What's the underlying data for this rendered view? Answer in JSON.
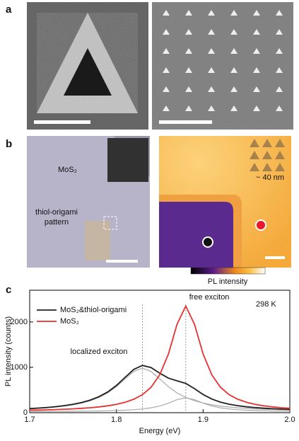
{
  "panel_labels": [
    "a",
    "b",
    "c"
  ],
  "panel_b": {
    "substrate_label": "MoS₂",
    "pattern_label": [
      "thiol-origami",
      "pattern"
    ],
    "inset_scale": "~ 40 nm",
    "colorbar_label": "PL intensity"
  },
  "chart_data": {
    "type": "line",
    "x": [
      1.7,
      1.71,
      1.72,
      1.73,
      1.74,
      1.75,
      1.76,
      1.77,
      1.78,
      1.79,
      1.8,
      1.81,
      1.82,
      1.83,
      1.84,
      1.85,
      1.86,
      1.87,
      1.88,
      1.89,
      1.9,
      1.91,
      1.92,
      1.93,
      1.94,
      1.95,
      1.96,
      1.97,
      1.98,
      1.99,
      2.0
    ],
    "series": [
      {
        "name": "MoS₂&thiol-origami",
        "color": "#222222",
        "values": [
          91,
          102,
          115,
          133,
          156,
          185,
          225,
          279,
          354,
          458,
          601,
          779,
          954,
          1042,
          995,
          871,
          762,
          703,
          646,
          531,
          401,
          301,
          233,
          187,
          154,
          130,
          113,
          98,
          88,
          79,
          72
        ]
      },
      {
        "name": "MoS₂",
        "color": "#e8312f",
        "values": [
          54,
          58,
          63,
          69,
          76,
          85,
          96,
          110,
          128,
          151,
          184,
          229,
          296,
          398,
          561,
          835,
          1296,
          1951,
          2350,
          1951,
          1296,
          835,
          561,
          398,
          296,
          229,
          184,
          151,
          128,
          110,
          96
        ]
      },
      {
        "color": "#aaaaaa",
        "values": [
          85,
          95,
          108,
          125,
          146,
          174,
          212,
          264,
          336,
          436,
          573,
          744,
          908,
          980,
          908,
          744,
          573,
          436,
          336,
          264,
          212,
          174,
          146,
          125,
          108,
          95,
          85,
          76,
          70,
          64,
          59
        ]
      },
      {
        "color": "#aaaaaa",
        "values": [
          26,
          27,
          27,
          28,
          30,
          31,
          33,
          35,
          38,
          42,
          48,
          55,
          66,
          82,
          107,
          147,
          209,
          287,
          330,
          287,
          209,
          147,
          107,
          82,
          66,
          55,
          48,
          42,
          38,
          35,
          33
        ]
      }
    ],
    "vlines": [
      1.83,
      1.88
    ],
    "xlim": [
      1.7,
      2.0
    ],
    "xticks": [
      1.7,
      1.8,
      1.9,
      {
        "value": 2,
        "label": "2.0"
      }
    ],
    "ylim": [
      0,
      2700
    ],
    "yticks": [
      0,
      1000,
      2000
    ],
    "xlabel": "Energy (eV)",
    "ylabel": "PL intensity (counts)",
    "annotations": [
      "free exciton",
      "localized exciton",
      "298 K"
    ],
    "legend": "upper left"
  }
}
